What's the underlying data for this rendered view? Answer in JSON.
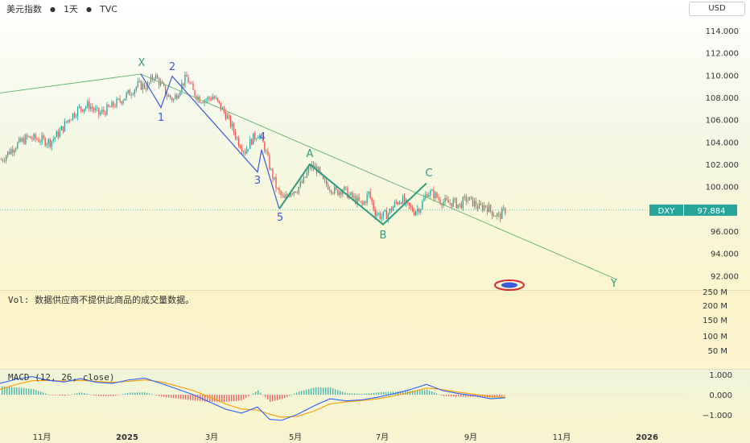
{
  "header": {
    "symbol_name": "美元指数",
    "interval": "1天",
    "exchange": "TVC"
  },
  "currency_button": "USD",
  "last_price": {
    "symbol": "DXY",
    "value": "97.884",
    "y": 97.884
  },
  "volume_panel": {
    "label": "Vol:",
    "message": "数据供应商不提供此商品的成交量数据。",
    "ticks": [
      "250 M",
      "200 M",
      "150 M",
      "100 M",
      "50 M"
    ]
  },
  "macd_panel": {
    "label": "MACD",
    "params": "(12, 26, close)",
    "ticks": [
      "1.000",
      "0.000",
      "−1.000"
    ]
  },
  "colors": {
    "up": "#26a69a",
    "down": "#ef5350",
    "wave": "#3b5bdb",
    "abc": "#2e9d82",
    "trend": "#63b36a",
    "macd_line": "#2962ff",
    "signal_line": "#ff9800",
    "price_tag": "#26a69a"
  },
  "chart_data": {
    "type": "candlestick",
    "ylim": [
      90.5,
      116
    ],
    "y_ticks": [
      "114.000",
      "112.000",
      "110.000",
      "108.000",
      "106.000",
      "104.000",
      "102.000",
      "100.000",
      "96.000",
      "94.000",
      "92.000"
    ],
    "x_ticks": [
      "11月",
      "2025",
      "3月",
      "5月",
      "7月",
      "9月",
      "11月",
      "2026"
    ],
    "series_close": [
      [
        0,
        102.4
      ],
      [
        8,
        103.6
      ],
      [
        16,
        104.4
      ],
      [
        24,
        104.2
      ],
      [
        30,
        104.0
      ],
      [
        36,
        104.9
      ],
      [
        42,
        106.2
      ],
      [
        48,
        107.0
      ],
      [
        54,
        107.3
      ],
      [
        60,
        106.5
      ],
      [
        66,
        107.0
      ],
      [
        72,
        107.6
      ],
      [
        78,
        108.3
      ],
      [
        84,
        109.1
      ],
      [
        90,
        109.0
      ],
      [
        94,
        110.0
      ],
      [
        98,
        109.2
      ],
      [
        102,
        108.2
      ],
      [
        106,
        107.8
      ],
      [
        110,
        108.9
      ],
      [
        114,
        109.8
      ],
      [
        118,
        108.5
      ],
      [
        122,
        107.9
      ],
      [
        126,
        107.8
      ],
      [
        130,
        108.1
      ],
      [
        134,
        107.3
      ],
      [
        138,
        106.5
      ],
      [
        142,
        105.3
      ],
      [
        146,
        104.0
      ],
      [
        150,
        103.2
      ],
      [
        154,
        104.2
      ],
      [
        158,
        104.8
      ],
      [
        162,
        103.5
      ],
      [
        166,
        101.3
      ],
      [
        170,
        99.6
      ],
      [
        174,
        98.8
      ],
      [
        178,
        99.6
      ],
      [
        182,
        99.8
      ],
      [
        186,
        100.5
      ],
      [
        190,
        101.8
      ],
      [
        194,
        101.6
      ],
      [
        198,
        100.4
      ],
      [
        202,
        100.0
      ],
      [
        206,
        99.5
      ],
      [
        210,
        99.8
      ],
      [
        214,
        99.2
      ],
      [
        218,
        98.8
      ],
      [
        222,
        98.3
      ],
      [
        226,
        99.4
      ],
      [
        230,
        97.7
      ],
      [
        234,
        97.3
      ],
      [
        238,
        97.6
      ],
      [
        242,
        98.4
      ],
      [
        246,
        98.9
      ],
      [
        250,
        98.2
      ],
      [
        254,
        97.8
      ],
      [
        258,
        98.2
      ],
      [
        262,
        99.5
      ],
      [
        266,
        99.3
      ],
      [
        270,
        98.8
      ],
      [
        274,
        98.5
      ],
      [
        278,
        98.6
      ],
      [
        282,
        98.3
      ],
      [
        286,
        98.9
      ],
      [
        290,
        98.6
      ],
      [
        294,
        98.1
      ],
      [
        298,
        98.3
      ],
      [
        302,
        97.7
      ],
      [
        306,
        97.3
      ],
      [
        310,
        97.9
      ]
    ],
    "wave_labels": [
      "X",
      "1",
      "2",
      "3",
      "4",
      "5",
      "A",
      "B",
      "C",
      "Y"
    ],
    "annotations": {
      "wave_impulse": [
        [
          175,
          110.1
        ],
        [
          200,
          107.1
        ],
        [
          214,
          109.9
        ],
        [
          320,
          101.3
        ],
        [
          325,
          103.3
        ],
        [
          347,
          98.0
        ]
      ],
      "wave_abc": [
        [
          347,
          98.0
        ],
        [
          385,
          102.0
        ],
        [
          476,
          96.6
        ],
        [
          530,
          100.3
        ]
      ],
      "trendline": [
        [
          0,
          108.4
        ],
        [
          175,
          110.1
        ],
        [
          765,
          91.7
        ]
      ]
    },
    "macd_ylim": [
      -1.8,
      1.3
    ],
    "macd": [
      [
        0,
        0.55
      ],
      [
        20,
        0.75
      ],
      [
        40,
        0.88
      ],
      [
        60,
        0.7
      ],
      [
        80,
        0.62
      ],
      [
        100,
        0.78
      ],
      [
        120,
        0.6
      ],
      [
        140,
        0.55
      ],
      [
        160,
        0.72
      ],
      [
        180,
        0.8
      ],
      [
        200,
        0.55
      ],
      [
        220,
        0.28
      ],
      [
        240,
        0.0
      ],
      [
        260,
        -0.35
      ],
      [
        280,
        -0.7
      ],
      [
        300,
        -0.9
      ],
      [
        320,
        -0.6
      ],
      [
        335,
        -1.2
      ],
      [
        350,
        -1.25
      ],
      [
        370,
        -0.95
      ],
      [
        390,
        -0.55
      ],
      [
        410,
        -0.2
      ],
      [
        430,
        -0.3
      ],
      [
        450,
        -0.25
      ],
      [
        470,
        -0.12
      ],
      [
        490,
        0.05
      ],
      [
        510,
        0.25
      ],
      [
        530,
        0.5
      ],
      [
        550,
        0.2
      ],
      [
        570,
        0.05
      ],
      [
        590,
        -0.05
      ],
      [
        610,
        -0.2
      ],
      [
        628,
        -0.15
      ]
    ],
    "signal": [
      [
        0,
        0.25
      ],
      [
        20,
        0.5
      ],
      [
        40,
        0.68
      ],
      [
        60,
        0.7
      ],
      [
        80,
        0.66
      ],
      [
        100,
        0.7
      ],
      [
        120,
        0.65
      ],
      [
        140,
        0.6
      ],
      [
        160,
        0.65
      ],
      [
        180,
        0.72
      ],
      [
        200,
        0.62
      ],
      [
        220,
        0.42
      ],
      [
        240,
        0.2
      ],
      [
        260,
        -0.1
      ],
      [
        280,
        -0.45
      ],
      [
        300,
        -0.7
      ],
      [
        320,
        -0.75
      ],
      [
        335,
        -0.95
      ],
      [
        350,
        -1.1
      ],
      [
        370,
        -1.05
      ],
      [
        390,
        -0.8
      ],
      [
        410,
        -0.45
      ],
      [
        430,
        -0.35
      ],
      [
        450,
        -0.28
      ],
      [
        470,
        -0.2
      ],
      [
        490,
        -0.05
      ],
      [
        510,
        0.12
      ],
      [
        530,
        0.32
      ],
      [
        550,
        0.25
      ],
      [
        570,
        0.12
      ],
      [
        590,
        0.02
      ],
      [
        610,
        -0.1
      ],
      [
        628,
        -0.12
      ]
    ]
  }
}
